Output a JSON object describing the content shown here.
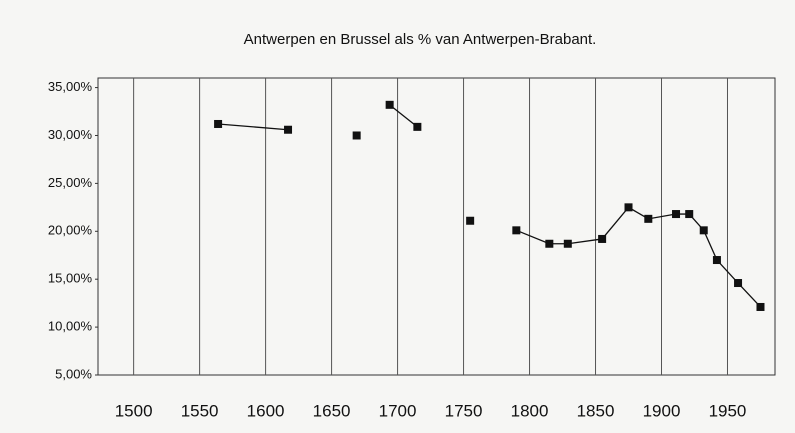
{
  "chart_data": {
    "type": "line",
    "title": "Antwerpen en Brussel als % van Antwerpen-Brabant.",
    "x": [
      1564,
      1617,
      1640,
      1669,
      1680,
      1694,
      1715,
      1735,
      1755,
      1770,
      1790,
      1815,
      1829,
      1855,
      1875,
      1890,
      1911,
      1921,
      1932,
      1942,
      1958,
      1975
    ],
    "series": [
      {
        "color": "#111111",
        "values": [
          31.2,
          30.6,
          null,
          30.0,
          null,
          33.2,
          30.9,
          null,
          21.1,
          null,
          20.1,
          18.7,
          18.7,
          19.2,
          22.5,
          21.3,
          21.8,
          21.8,
          20.1,
          17.0,
          14.6,
          12.1
        ]
      }
    ],
    "xlim": [
      1473,
      1986
    ],
    "xticks": [
      1500,
      1550,
      1600,
      1650,
      1700,
      1750,
      1800,
      1850,
      1900,
      1950
    ],
    "ylim": [
      5,
      36
    ],
    "yticks": [
      {
        "value": 5,
        "label": "5,00%"
      },
      {
        "value": 10,
        "label": "10,00%"
      },
      {
        "value": 15,
        "label": "15,00%"
      },
      {
        "value": 20,
        "label": "20,00%"
      },
      {
        "value": 25,
        "label": "25,00%"
      },
      {
        "value": 30,
        "label": "30,00%"
      },
      {
        "value": 35,
        "label": "35,00%"
      }
    ],
    "grid": true
  }
}
